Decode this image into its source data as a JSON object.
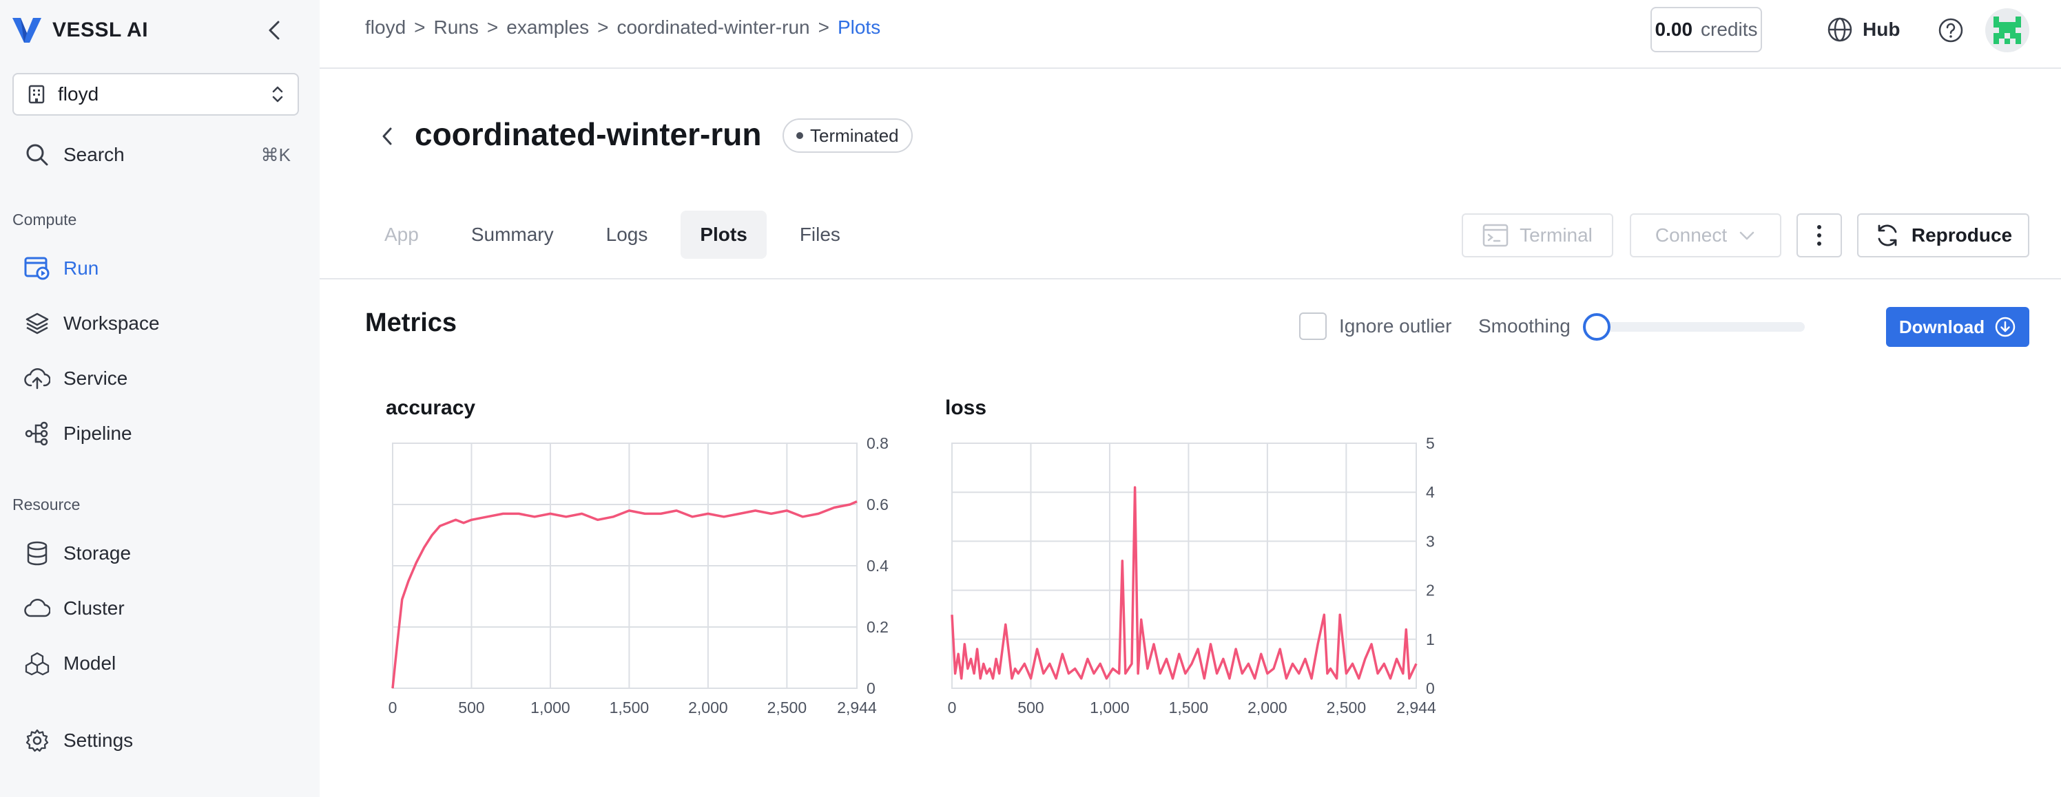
{
  "sidebar": {
    "brand": "VESSL AI",
    "org": "floyd",
    "search": {
      "label": "Search",
      "shortcut": "⌘K"
    },
    "sections": {
      "compute": "Compute",
      "resource": "Resource"
    },
    "compute_items": [
      {
        "label": "Run",
        "icon": "run-icon",
        "active": true
      },
      {
        "label": "Workspace",
        "icon": "workspace-icon"
      },
      {
        "label": "Service",
        "icon": "service-icon"
      },
      {
        "label": "Pipeline",
        "icon": "pipeline-icon"
      }
    ],
    "resource_items": [
      {
        "label": "Storage",
        "icon": "storage-icon"
      },
      {
        "label": "Cluster",
        "icon": "cluster-icon"
      },
      {
        "label": "Model",
        "icon": "model-icon"
      }
    ],
    "settings": "Settings"
  },
  "topbar": {
    "breadcrumb": [
      "floyd",
      "Runs",
      "examples",
      "coordinated-winter-run",
      "Plots"
    ],
    "separator": ">",
    "credits": {
      "amount": "0.00",
      "unit": "credits"
    },
    "hub": "Hub"
  },
  "run": {
    "title": "coordinated-winter-run",
    "status": "Terminated"
  },
  "tabs": [
    "App",
    "Summary",
    "Logs",
    "Plots",
    "Files"
  ],
  "actions": {
    "terminal": "Terminal",
    "connect": "Connect",
    "reproduce": "Reproduce"
  },
  "metrics": {
    "title": "Metrics",
    "ignore_outlier": "Ignore outlier",
    "smoothing": "Smoothing",
    "smoothing_value": 0,
    "download": "Download"
  },
  "colors": {
    "accent": "#2f6fe4",
    "series": "#f2557a",
    "grid": "#dcdfe4"
  },
  "chart_data": [
    {
      "type": "line",
      "title": "accuracy",
      "x_ticks": [
        "0",
        "500",
        "1,000",
        "1,500",
        "2,000",
        "2,500",
        "2,944"
      ],
      "x_tick_values": [
        0,
        500,
        1000,
        1500,
        2000,
        2500,
        2944
      ],
      "y_ticks": [
        "0",
        "0.2",
        "0.4",
        "0.6",
        "0.8"
      ],
      "y_tick_values": [
        0,
        0.2,
        0.4,
        0.6,
        0.8
      ],
      "xlim": [
        0,
        2944
      ],
      "ylim": [
        0,
        0.8
      ],
      "y_axis_side": "right",
      "grid": true,
      "series": [
        {
          "x": [
            0,
            30,
            60,
            100,
            150,
            200,
            250,
            300,
            350,
            400,
            450,
            500,
            600,
            700,
            800,
            900,
            1000,
            1100,
            1200,
            1300,
            1400,
            1500,
            1600,
            1700,
            1800,
            1900,
            2000,
            2100,
            2200,
            2300,
            2400,
            2500,
            2600,
            2700,
            2800,
            2900,
            2944
          ],
          "y": [
            0.0,
            0.15,
            0.29,
            0.35,
            0.41,
            0.46,
            0.5,
            0.53,
            0.54,
            0.55,
            0.54,
            0.55,
            0.56,
            0.57,
            0.57,
            0.56,
            0.57,
            0.56,
            0.57,
            0.55,
            0.56,
            0.58,
            0.57,
            0.57,
            0.58,
            0.56,
            0.57,
            0.56,
            0.57,
            0.58,
            0.57,
            0.58,
            0.56,
            0.57,
            0.59,
            0.6,
            0.61
          ]
        }
      ]
    },
    {
      "type": "line",
      "title": "loss",
      "x_ticks": [
        "0",
        "500",
        "1,000",
        "1,500",
        "2,000",
        "2,500",
        "2,944"
      ],
      "x_tick_values": [
        0,
        500,
        1000,
        1500,
        2000,
        2500,
        2944
      ],
      "y_ticks": [
        "0",
        "1",
        "2",
        "3",
        "4",
        "5"
      ],
      "y_tick_values": [
        0,
        1,
        2,
        3,
        4,
        5
      ],
      "xlim": [
        0,
        2944
      ],
      "ylim": [
        0,
        5
      ],
      "y_axis_side": "right",
      "grid": true,
      "series": [
        {
          "x": [
            0,
            20,
            40,
            60,
            80,
            100,
            120,
            140,
            160,
            180,
            200,
            220,
            240,
            260,
            280,
            300,
            340,
            380,
            400,
            420,
            460,
            500,
            540,
            580,
            620,
            660,
            700,
            740,
            780,
            820,
            860,
            900,
            940,
            980,
            1020,
            1060,
            1080,
            1100,
            1140,
            1160,
            1180,
            1200,
            1240,
            1280,
            1320,
            1360,
            1400,
            1440,
            1480,
            1520,
            1560,
            1600,
            1640,
            1680,
            1720,
            1760,
            1800,
            1840,
            1880,
            1920,
            1960,
            2000,
            2040,
            2080,
            2120,
            2160,
            2200,
            2240,
            2280,
            2320,
            2360,
            2380,
            2400,
            2440,
            2460,
            2500,
            2540,
            2580,
            2620,
            2660,
            2700,
            2740,
            2780,
            2820,
            2860,
            2880,
            2900,
            2944
          ],
          "y": [
            1.5,
            0.3,
            0.7,
            0.2,
            0.9,
            0.4,
            0.6,
            0.3,
            0.8,
            0.2,
            0.5,
            0.3,
            0.4,
            0.2,
            0.6,
            0.3,
            1.3,
            0.2,
            0.4,
            0.3,
            0.5,
            0.2,
            0.8,
            0.3,
            0.5,
            0.2,
            0.7,
            0.3,
            0.4,
            0.2,
            0.6,
            0.3,
            0.5,
            0.2,
            0.4,
            0.3,
            2.6,
            0.3,
            0.5,
            4.1,
            0.3,
            1.4,
            0.4,
            0.9,
            0.3,
            0.6,
            0.2,
            0.7,
            0.3,
            0.5,
            0.8,
            0.2,
            0.9,
            0.3,
            0.6,
            0.2,
            0.8,
            0.3,
            0.5,
            0.2,
            0.7,
            0.3,
            0.4,
            0.8,
            0.2,
            0.5,
            0.3,
            0.6,
            0.2,
            0.9,
            1.5,
            0.3,
            0.4,
            0.2,
            1.5,
            0.3,
            0.5,
            0.2,
            0.6,
            0.9,
            0.3,
            0.5,
            0.2,
            0.6,
            0.3,
            1.2,
            0.2,
            0.5
          ]
        }
      ]
    }
  ]
}
